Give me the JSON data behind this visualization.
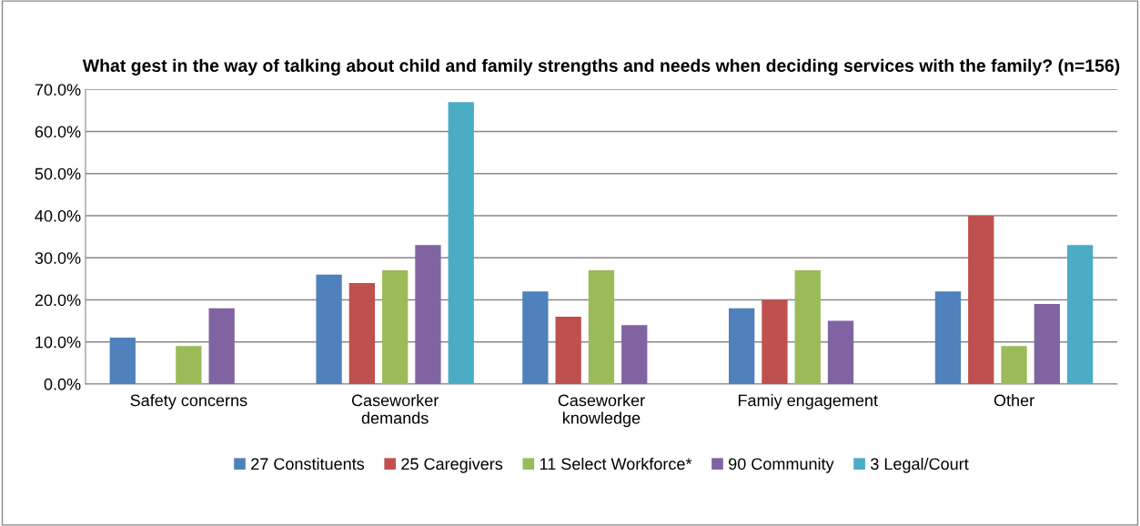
{
  "chart_data": {
    "type": "bar",
    "title": "What gest in the way of talking about child and family strengths and needs when deciding services with the family? (n=156)",
    "categories": [
      "Safety concerns",
      "Caseworker\ndemands",
      "Caseworker\nknowledge",
      "Famiy engagement",
      "Other"
    ],
    "series": [
      {
        "name": "27 Constituents",
        "color": "#4f81bd",
        "values": [
          11,
          26,
          22,
          18,
          22
        ]
      },
      {
        "name": "25 Caregivers",
        "color": "#c0504d",
        "values": [
          0,
          24,
          16,
          20,
          40
        ]
      },
      {
        "name": "11 Select Workforce*",
        "color": "#9bbb59",
        "values": [
          9,
          27,
          27,
          27,
          9
        ]
      },
      {
        "name": "90 Community",
        "color": "#8064a2",
        "values": [
          18,
          33,
          14,
          15,
          19
        ]
      },
      {
        "name": "3 Legal/Court",
        "color": "#4bacc6",
        "values": [
          0,
          67,
          0,
          0,
          33
        ]
      }
    ],
    "ylim": [
      0,
      70
    ],
    "yticks": [
      {
        "value": 0,
        "label": "0.0%"
      },
      {
        "value": 10,
        "label": "10.0%"
      },
      {
        "value": 20,
        "label": "20.0%"
      },
      {
        "value": 30,
        "label": "30.0%"
      },
      {
        "value": 40,
        "label": "40.0%"
      },
      {
        "value": 50,
        "label": "50.0%"
      },
      {
        "value": 60,
        "label": "60.0%"
      },
      {
        "value": 70,
        "label": "70.0%"
      }
    ],
    "grid": "y",
    "legend": "bottom"
  }
}
